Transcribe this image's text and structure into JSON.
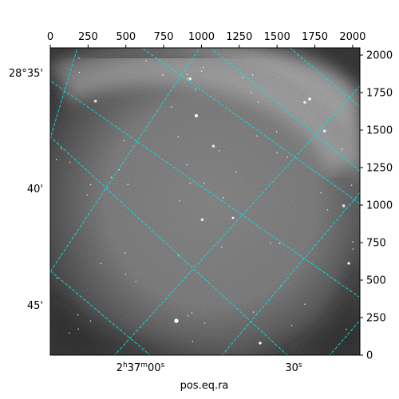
{
  "chart_data": {
    "type": "image",
    "xlabel": "pos.eq.ra",
    "pixel_axes": {
      "x_range": [
        0,
        2048
      ],
      "y_range": [
        0,
        2048
      ],
      "x_ticks": [
        0,
        250,
        500,
        750,
        1000,
        1250,
        1500,
        1750,
        2000
      ],
      "y_ticks": [
        0,
        250,
        500,
        750,
        1000,
        1250,
        1500,
        1750,
        2000
      ]
    },
    "dec_labels": [
      "28°35'",
      "40'",
      "45'"
    ],
    "ra_labels": [
      {
        "hours": "2",
        "minutes": "37",
        "seconds": "00"
      },
      {
        "seconds": "30"
      }
    ],
    "grid_color": "#00e5e5",
    "grid_style": "dashed",
    "colormap": "gray"
  }
}
